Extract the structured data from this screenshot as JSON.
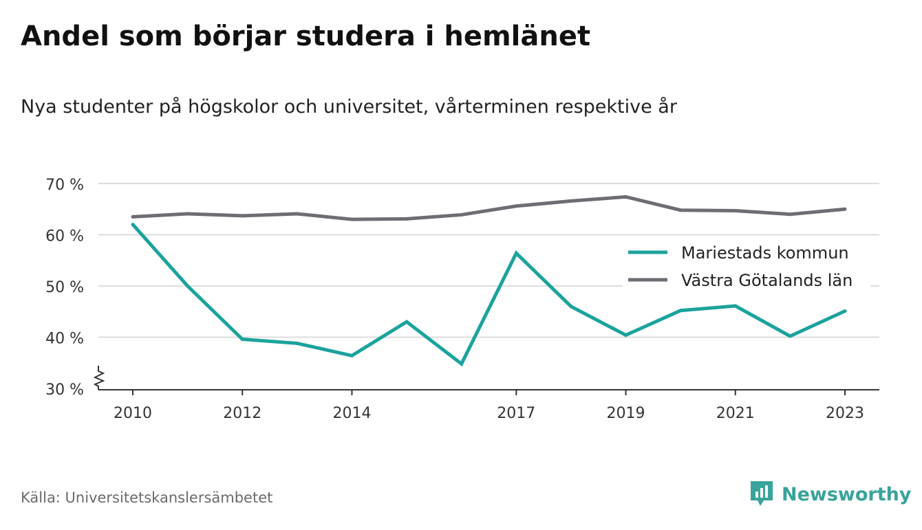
{
  "title": "Andel som börjar studera i hemlänet",
  "subtitle": "Nya studenter på högskolor och universitet, vårterminen respektive år",
  "source": "Källa: Universitetskanslersämbetet",
  "brand": {
    "name": "Newsworthy",
    "icon": "newsworthy-logo-icon",
    "color": "#3aa39b"
  },
  "chart_data": {
    "type": "line",
    "title": "Andel som börjar studera i hemlänet",
    "subtitle": "Nya studenter på högskolor och universitet, vårterminen respektive år",
    "x": [
      2010,
      2011,
      2012,
      2013,
      2014,
      2015,
      2016,
      2017,
      2018,
      2019,
      2020,
      2021,
      2022,
      2023
    ],
    "x_tick_values": [
      2010,
      2012,
      2014,
      2017,
      2019,
      2021,
      2023
    ],
    "x_tick_labels": [
      "2010",
      "2012",
      "2014",
      "2017",
      "2019",
      "2021",
      "2023"
    ],
    "y_tick_values": [
      30,
      40,
      50,
      60,
      70
    ],
    "y_tick_labels": [
      "30 %",
      "40 %",
      "50 %",
      "60 %",
      "70 %"
    ],
    "ylim": [
      30,
      70
    ],
    "y_axis_break": true,
    "grid": "horizontal",
    "legend_position": "right",
    "series": [
      {
        "name": "Mariestads kommun",
        "color": "#1ba39c",
        "values": [
          62.0,
          50.0,
          39.6,
          38.8,
          36.4,
          43.0,
          34.8,
          56.4,
          46.0,
          40.4,
          45.2,
          46.1,
          40.2,
          45.1
        ]
      },
      {
        "name": "Västra Götalands län",
        "color": "#6e6d75",
        "values": [
          63.5,
          64.1,
          63.7,
          64.1,
          63.0,
          63.1,
          63.9,
          65.6,
          66.6,
          67.4,
          64.8,
          64.7,
          64.0,
          65.0
        ]
      }
    ]
  }
}
